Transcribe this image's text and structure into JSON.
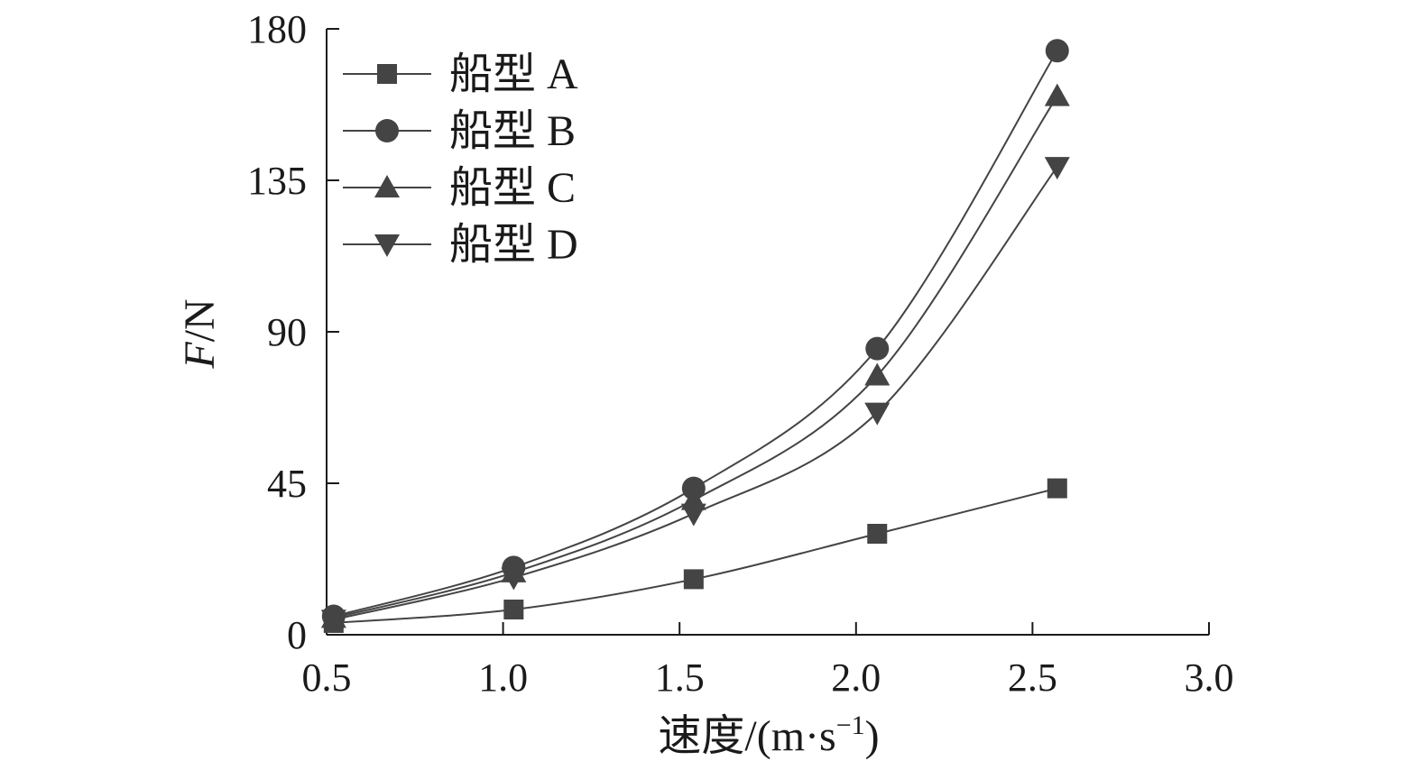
{
  "chart_data": {
    "type": "line",
    "title": "",
    "xlabel_main": "速度/(m·s",
    "xlabel_sup": "−1",
    "xlabel_close": ")",
    "ylabel_italic": "F",
    "ylabel_rest": "/N",
    "xlim": [
      0.5,
      3.0
    ],
    "ylim": [
      0,
      180
    ],
    "xticks": [
      0.5,
      1.0,
      1.5,
      2.0,
      2.5,
      3.0
    ],
    "xtick_labels": [
      "0.5",
      "1.0",
      "1.5",
      "2.0",
      "2.5",
      "3.0"
    ],
    "yticks": [
      0,
      45,
      90,
      135,
      180
    ],
    "ytick_labels": [
      "0",
      "45",
      "90",
      "135",
      "180"
    ],
    "legend_position": "top-left",
    "grid": false,
    "series": [
      {
        "name": "船型 A",
        "marker": "square",
        "x": [
          0.52,
          1.03,
          1.54,
          2.06,
          2.57
        ],
        "y": [
          3.5,
          7.5,
          16.5,
          30,
          43.5
        ]
      },
      {
        "name": "船型 B",
        "marker": "circle",
        "x": [
          0.52,
          1.03,
          1.54,
          2.06,
          2.57
        ],
        "y": [
          5.5,
          20,
          43.5,
          85,
          173.5
        ]
      },
      {
        "name": "船型 C",
        "marker": "triangle-up",
        "x": [
          0.52,
          1.03,
          1.54,
          2.06,
          2.57
        ],
        "y": [
          5,
          18.5,
          40,
          77,
          160
        ]
      },
      {
        "name": "船型 D",
        "marker": "triangle-down",
        "x": [
          0.52,
          1.03,
          1.54,
          2.06,
          2.57
        ],
        "y": [
          4.5,
          17,
          36,
          66,
          139
        ]
      }
    ]
  },
  "colors": {
    "axis": "#1a1a1a",
    "series": "#444444"
  }
}
